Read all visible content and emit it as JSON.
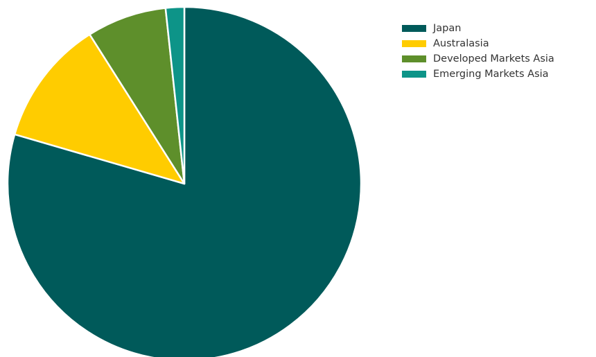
{
  "chart_data": {
    "type": "pie",
    "categories": [
      "Japan",
      "Australasia",
      "Developed Markets Asia",
      "Emerging Markets Asia"
    ],
    "values": [
      79.5,
      11.5,
      7.3,
      1.7
    ],
    "unit": "%",
    "colors": [
      "#005a5a",
      "#ffcc00",
      "#5e8f2b",
      "#0d9488"
    ],
    "start_angle_deg": 0,
    "direction": "clockwise",
    "slice_border_color": "#ffffff",
    "legend": {
      "position": "top-right",
      "entries": [
        "Japan",
        "Australasia",
        "Developed Markets Asia",
        "Emerging Markets Asia"
      ]
    }
  }
}
